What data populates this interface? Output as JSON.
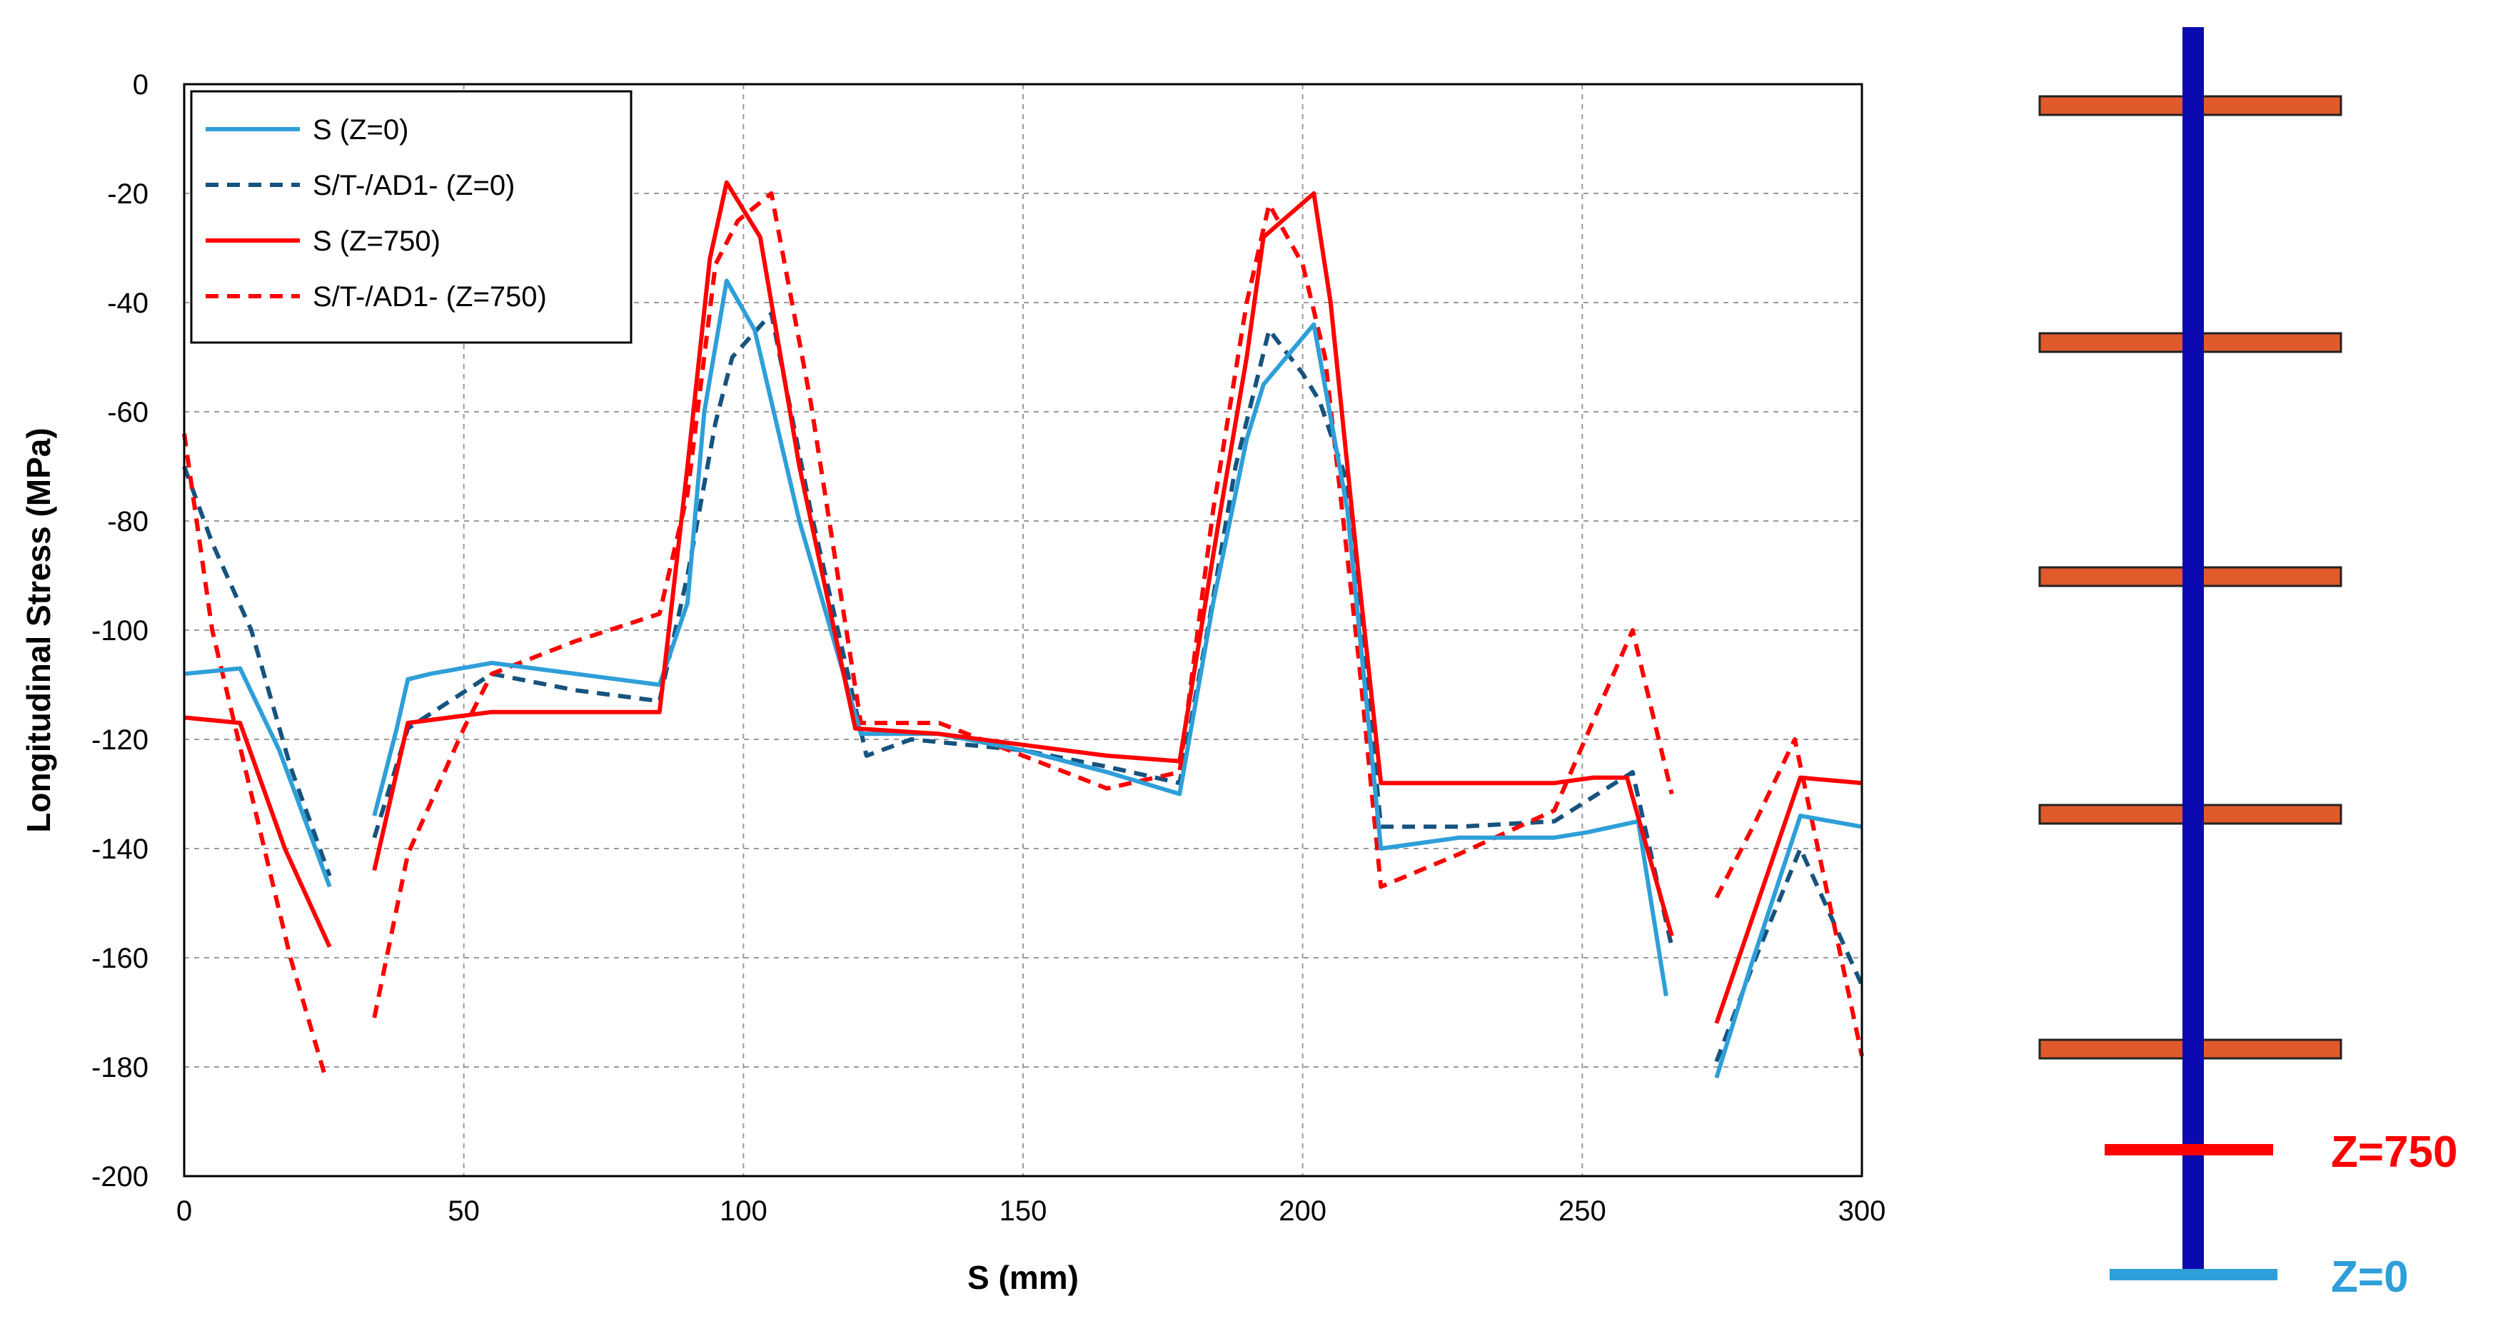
{
  "chart_data": {
    "type": "line",
    "title": "",
    "xlabel": "S (mm)",
    "ylabel": "Longitudinal Stress (MPa)",
    "xlim": [
      0,
      300
    ],
    "ylim": [
      -200,
      0
    ],
    "xticks": [
      0,
      50,
      100,
      150,
      200,
      250,
      300
    ],
    "yticks": [
      0,
      -20,
      -40,
      -60,
      -80,
      -100,
      -120,
      -140,
      -160,
      -180,
      -200
    ],
    "grid": true,
    "legend_position": "top-left",
    "series": [
      {
        "name": "S (Z=0)",
        "color": "#2e9fd8",
        "dash": "solid",
        "segments": [
          [
            [
              0,
              -108
            ],
            [
              10,
              -107
            ],
            [
              17,
              -122
            ],
            [
              26,
              -147
            ]
          ],
          [
            [
              34,
              -134
            ],
            [
              38,
              -118
            ],
            [
              40,
              -109
            ],
            [
              44,
              -108
            ],
            [
              55,
              -106
            ],
            [
              70,
              -108
            ],
            [
              85,
              -110
            ],
            [
              90,
              -95
            ],
            [
              93,
              -60
            ],
            [
              97,
              -36
            ],
            [
              102,
              -45
            ],
            [
              110,
              -80
            ],
            [
              121,
              -119
            ],
            [
              135,
              -119
            ],
            [
              150,
              -122
            ],
            [
              165,
              -126
            ],
            [
              178,
              -130
            ],
            [
              184,
              -95
            ],
            [
              190,
              -65
            ],
            [
              193,
              -55
            ],
            [
              202,
              -44
            ],
            [
              208,
              -78
            ],
            [
              214,
              -140
            ],
            [
              228,
              -138
            ],
            [
              245,
              -138
            ],
            [
              251,
              -137
            ],
            [
              260,
              -135
            ],
            [
              265,
              -167
            ]
          ],
          [
            [
              274,
              -182
            ],
            [
              280,
              -162
            ],
            [
              289,
              -134
            ],
            [
              300,
              -136
            ]
          ]
        ]
      },
      {
        "name": "S/T-/AD1- (Z=0)",
        "color": "#16537e",
        "dash": "dashed",
        "segments": [
          [
            [
              0,
              -70
            ],
            [
              5,
              -84
            ],
            [
              12,
              -100
            ],
            [
              19,
              -125
            ],
            [
              26,
              -145
            ]
          ],
          [
            [
              34,
              -138
            ],
            [
              40,
              -118
            ],
            [
              55,
              -108
            ],
            [
              70,
              -111
            ],
            [
              85,
              -113
            ],
            [
              90,
              -90
            ],
            [
              95,
              -62
            ],
            [
              98,
              -50
            ],
            [
              105,
              -42
            ],
            [
              112,
              -78
            ],
            [
              122,
              -123
            ],
            [
              130,
              -120
            ],
            [
              150,
              -122
            ],
            [
              165,
              -125
            ],
            [
              178,
              -128
            ],
            [
              183,
              -100
            ],
            [
              188,
              -70
            ],
            [
              194,
              -45
            ],
            [
              200,
              -53
            ],
            [
              203,
              -58
            ],
            [
              208,
              -73
            ],
            [
              214,
              -136
            ],
            [
              228,
              -136
            ],
            [
              245,
              -135
            ],
            [
              259,
              -126
            ],
            [
              266,
              -158
            ]
          ],
          [
            [
              274,
              -179
            ],
            [
              281,
              -160
            ],
            [
              289,
              -140
            ],
            [
              300,
              -165
            ]
          ]
        ]
      },
      {
        "name": "S (Z=750)",
        "color": "#ff0000",
        "dash": "solid",
        "segments": [
          [
            [
              0,
              -116
            ],
            [
              10,
              -117
            ],
            [
              18,
              -140
            ],
            [
              26,
              -158
            ]
          ],
          [
            [
              34,
              -144
            ],
            [
              40,
              -117
            ],
            [
              55,
              -115
            ],
            [
              70,
              -115
            ],
            [
              85,
              -115
            ],
            [
              90,
              -70
            ],
            [
              94,
              -32
            ],
            [
              97,
              -18
            ],
            [
              103,
              -28
            ],
            [
              110,
              -70
            ],
            [
              120,
              -118
            ],
            [
              135,
              -119
            ],
            [
              150,
              -121
            ],
            [
              165,
              -123
            ],
            [
              178,
              -124
            ],
            [
              185,
              -80
            ],
            [
              190,
              -50
            ],
            [
              193,
              -28
            ],
            [
              202,
              -20
            ],
            [
              205,
              -40
            ],
            [
              210,
              -90
            ],
            [
              214,
              -128
            ],
            [
              230,
              -128
            ],
            [
              245,
              -128
            ],
            [
              252,
              -127
            ],
            [
              258,
              -127
            ],
            [
              266,
              -156
            ]
          ],
          [
            [
              274,
              -172
            ],
            [
              282,
              -148
            ],
            [
              289,
              -127
            ],
            [
              300,
              -128
            ]
          ]
        ]
      },
      {
        "name": "S/T-/AD1- (Z=750)",
        "color": "#ff0000",
        "dash": "dashed",
        "segments": [
          [
            [
              0,
              -64
            ],
            [
              5,
              -100
            ],
            [
              12,
              -130
            ],
            [
              19,
              -160
            ],
            [
              25,
              -181
            ]
          ],
          [
            [
              34,
              -171
            ],
            [
              40,
              -141
            ],
            [
              50,
              -118
            ],
            [
              55,
              -108
            ],
            [
              70,
              -102
            ],
            [
              85,
              -97
            ],
            [
              90,
              -75
            ],
            [
              95,
              -33
            ],
            [
              99,
              -25
            ],
            [
              105,
              -20
            ],
            [
              112,
              -58
            ],
            [
              121,
              -117
            ],
            [
              135,
              -117
            ],
            [
              150,
              -123
            ],
            [
              165,
              -129
            ],
            [
              178,
              -126
            ],
            [
              184,
              -78
            ],
            [
              190,
              -40
            ],
            [
              194,
              -22
            ],
            [
              200,
              -33
            ],
            [
              204,
              -50
            ],
            [
              210,
              -105
            ],
            [
              214,
              -147
            ],
            [
              228,
              -141
            ],
            [
              245,
              -133
            ],
            [
              259,
              -100
            ],
            [
              266,
              -130
            ]
          ],
          [
            [
              274,
              -149
            ],
            [
              281,
              -135
            ],
            [
              288,
              -120
            ],
            [
              300,
              -178
            ]
          ]
        ]
      }
    ]
  },
  "diagram": {
    "z750_label": "Z=750",
    "z0_label": "Z=0",
    "colors": {
      "column": "#0a0ab0",
      "plate": "#e05a2b",
      "plate_border": "#222222",
      "z750": "#ff0000",
      "z0": "#2e9fd8"
    }
  }
}
